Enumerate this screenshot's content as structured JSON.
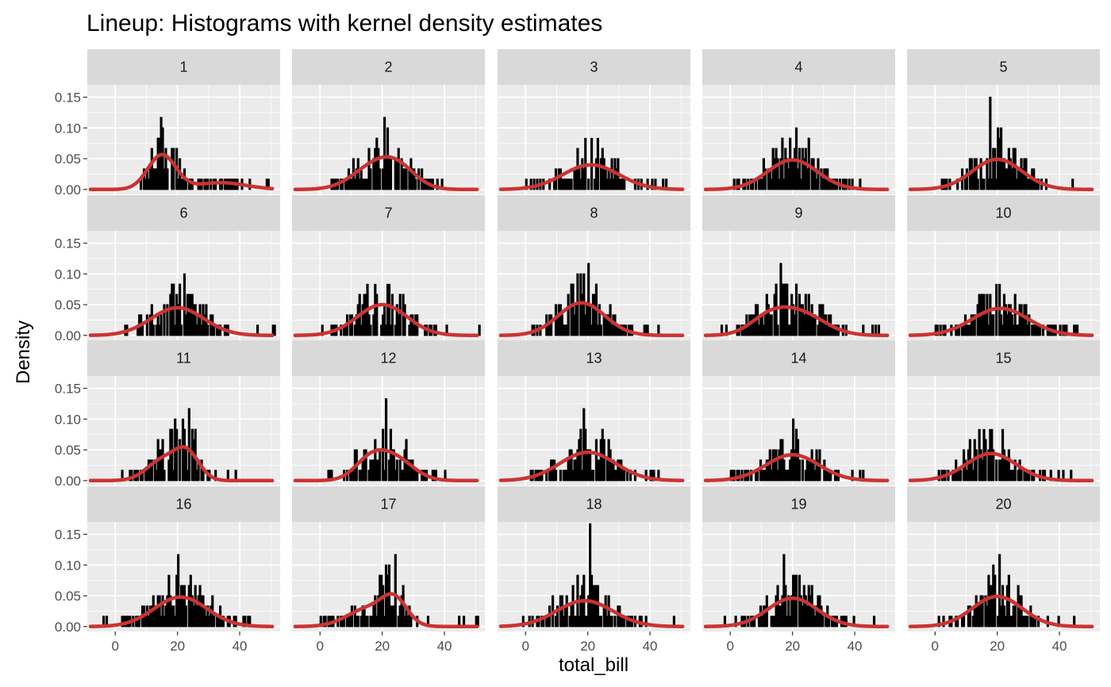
{
  "chart_data": {
    "type": "histogram",
    "title": "Lineup: Histograms with kernel density estimates",
    "xlabel": "total_bill",
    "ylabel": "Density",
    "xlim": [
      -9,
      53
    ],
    "ylim": [
      -0.008,
      0.17
    ],
    "x_ticks": [
      0,
      20,
      40
    ],
    "y_ticks": [
      0.0,
      0.05,
      0.1,
      0.15
    ],
    "y_tick_labels": [
      "0.00",
      "0.05",
      "0.10",
      "0.15"
    ],
    "grid": true,
    "facet_layout": {
      "rows": 4,
      "cols": 5
    },
    "bar_color": "#000000",
    "density_color": "#cc3333",
    "panel_background": "#ebebeb",
    "strip_background": "#d9d9d9",
    "panels": [
      {
        "label": "1",
        "density_peaks": [
          [
            15,
            0.056,
            4.5
          ],
          [
            34,
            0.011,
            8
          ]
        ],
        "hist_max": 0.117,
        "support": [
          6,
          52
        ]
      },
      {
        "label": "2",
        "density_peaks": [
          [
            17,
            0.034,
            7
          ],
          [
            25,
            0.03,
            6
          ]
        ],
        "hist_max": 0.117,
        "support": [
          2,
          47
        ]
      },
      {
        "label": "3",
        "density_peaks": [
          [
            21,
            0.04,
            9
          ]
        ],
        "hist_max": 0.083,
        "support": [
          0,
          48
        ]
      },
      {
        "label": "4",
        "density_peaks": [
          [
            20,
            0.048,
            8
          ]
        ],
        "hist_max": 0.1,
        "support": [
          0,
          44
        ]
      },
      {
        "label": "5",
        "density_peaks": [
          [
            20,
            0.049,
            8
          ]
        ],
        "hist_max": 0.15,
        "support": [
          0,
          46
        ]
      },
      {
        "label": "6",
        "density_peaks": [
          [
            20,
            0.045,
            8.5
          ]
        ],
        "hist_max": 0.1,
        "support": [
          0,
          52
        ]
      },
      {
        "label": "7",
        "density_peaks": [
          [
            20,
            0.05,
            8
          ]
        ],
        "hist_max": 0.083,
        "support": [
          0,
          52
        ]
      },
      {
        "label": "8",
        "density_peaks": [
          [
            18,
            0.053,
            7.5
          ]
        ],
        "hist_max": 0.117,
        "support": [
          2,
          44
        ]
      },
      {
        "label": "9",
        "density_peaks": [
          [
            12,
            0.022,
            6
          ],
          [
            22,
            0.037,
            8
          ]
        ],
        "hist_max": 0.117,
        "support": [
          -4,
          50
        ]
      },
      {
        "label": "10",
        "density_peaks": [
          [
            21,
            0.044,
            9
          ]
        ],
        "hist_max": 0.083,
        "support": [
          0,
          50
        ]
      },
      {
        "label": "11",
        "density_peaks": [
          [
            15,
            0.032,
            5
          ],
          [
            23,
            0.044,
            4
          ]
        ],
        "hist_max": 0.117,
        "support": [
          2,
          44
        ]
      },
      {
        "label": "12",
        "density_peaks": [
          [
            16,
            0.03,
            5
          ],
          [
            24,
            0.035,
            6
          ]
        ],
        "hist_max": 0.133,
        "support": [
          2,
          44
        ]
      },
      {
        "label": "13",
        "density_peaks": [
          [
            20,
            0.046,
            9
          ]
        ],
        "hist_max": 0.117,
        "support": [
          0,
          48
        ]
      },
      {
        "label": "14",
        "density_peaks": [
          [
            20,
            0.042,
            8.5
          ]
        ],
        "hist_max": 0.1,
        "support": [
          0,
          46
        ]
      },
      {
        "label": "15",
        "density_peaks": [
          [
            18,
            0.044,
            8
          ]
        ],
        "hist_max": 0.083,
        "support": [
          0,
          44
        ]
      },
      {
        "label": "16",
        "density_peaks": [
          [
            21,
            0.048,
            8.5
          ]
        ],
        "hist_max": 0.117,
        "support": [
          -4,
          46
        ]
      },
      {
        "label": "17",
        "density_peaks": [
          [
            16,
            0.03,
            7
          ],
          [
            24,
            0.036,
            4
          ]
        ],
        "hist_max": 0.117,
        "support": [
          0,
          52
        ]
      },
      {
        "label": "18",
        "density_peaks": [
          [
            19,
            0.042,
            9
          ]
        ],
        "hist_max": 0.167,
        "support": [
          -2,
          48
        ]
      },
      {
        "label": "19",
        "density_peaks": [
          [
            20,
            0.046,
            8
          ]
        ],
        "hist_max": 0.117,
        "support": [
          -4,
          48
        ]
      },
      {
        "label": "20",
        "density_peaks": [
          [
            20,
            0.049,
            8
          ]
        ],
        "hist_max": 0.117,
        "support": [
          0,
          46
        ]
      }
    ]
  }
}
